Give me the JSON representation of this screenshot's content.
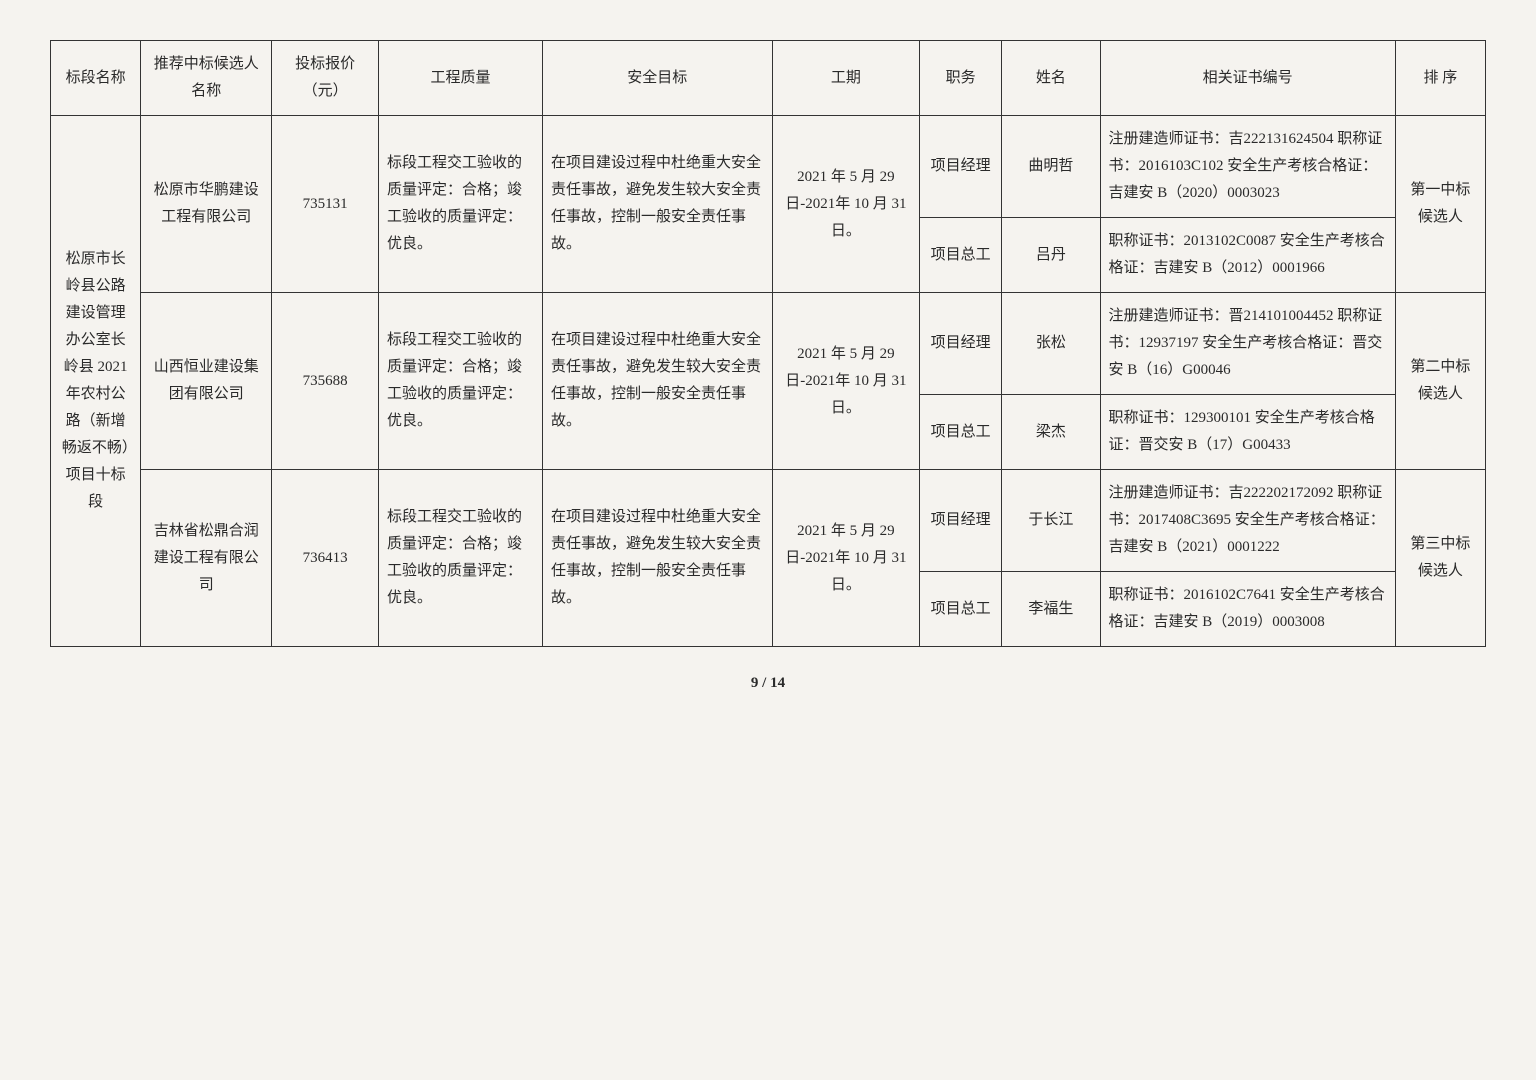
{
  "headers": {
    "section": "标段名称",
    "candidate": "推荐中标候选人名称",
    "bid": "投标报价（元）",
    "quality": "工程质量",
    "safety": "安全目标",
    "period": "工期",
    "role": "职务",
    "name": "姓名",
    "cert": "相关证书编号",
    "rank": "排 序"
  },
  "section_name": "松原市长岭县公路建设管理办公室长岭县 2021 年农村公路（新增畅返不畅）项目十标段",
  "candidates": [
    {
      "company": "松原市华鹏建设工程有限公司",
      "bid": "735131",
      "quality": "标段工程交工验收的质量评定：合格；竣工验收的质量评定：优良。",
      "safety": "在项目建设过程中杜绝重大安全责任事故，避免发生较大安全责任事故，控制一般安全责任事故。",
      "period": "2021 年 5 月 29 日-2021年 10 月 31 日。",
      "rank": "第一中标候选人",
      "personnel": [
        {
          "role": "项目经理",
          "name": "曲明哲",
          "cert": "注册建造师证书：吉222131624504\n职称证书：2016103C102\n安全生产考核合格证：吉建安 B（2020）0003023"
        },
        {
          "role": "项目总工",
          "name": "吕丹",
          "cert": "职称证书：2013102C0087\n安全生产考核合格证：吉建安 B（2012）0001966"
        }
      ]
    },
    {
      "company": "山西恒业建设集团有限公司",
      "bid": "735688",
      "quality": "标段工程交工验收的质量评定：合格；竣工验收的质量评定：优良。",
      "safety": "在项目建设过程中杜绝重大安全责任事故，避免发生较大安全责任事故，控制一般安全责任事故。",
      "period": "2021 年 5 月 29 日-2021年 10 月 31 日。",
      "rank": "第二中标候选人",
      "personnel": [
        {
          "role": "项目经理",
          "name": "张松",
          "cert": "注册建造师证书：晋214101004452\n职称证书：12937197\n安全生产考核合格证：晋交安 B（16）G00046"
        },
        {
          "role": "项目总工",
          "name": "梁杰",
          "cert": "职称证书：129300101\n安全生产考核合格证：晋交安 B（17）G00433"
        }
      ]
    },
    {
      "company": "吉林省松鼎合润建设工程有限公司",
      "bid": "736413",
      "quality": "标段工程交工验收的质量评定：合格；竣工验收的质量评定：优良。",
      "safety": "在项目建设过程中杜绝重大安全责任事故，避免发生较大安全责任事故，控制一般安全责任事故。",
      "period": "2021 年 5 月 29 日-2021年 10 月 31 日。",
      "rank": "第三中标候选人",
      "personnel": [
        {
          "role": "项目经理",
          "name": "于长江",
          "cert": "注册建造师证书：吉222202172092\n职称证书：2017408C3695\n安全生产考核合格证：吉建安 B（2021）0001222"
        },
        {
          "role": "项目总工",
          "name": "李福生",
          "cert": "职称证书：2016102C7641\n安全生产考核合格证：吉建安 B（2019）0003008"
        }
      ]
    }
  ],
  "page": {
    "current": "9",
    "sep": " / ",
    "total": "14"
  }
}
